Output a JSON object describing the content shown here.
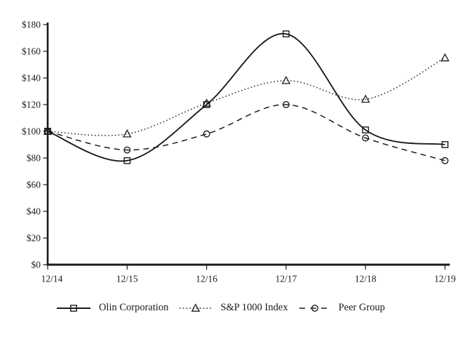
{
  "chart_data": {
    "type": "line",
    "title": "",
    "x_axis": {
      "categories": [
        "12/14",
        "12/15",
        "12/16",
        "12/17",
        "12/18",
        "12/19"
      ]
    },
    "y_axis": {
      "min": 0,
      "max": 180,
      "tick_step": 20,
      "tick_labels": [
        "$0",
        "$20",
        "$40",
        "$60",
        "$80",
        "$100",
        "$120",
        "$140",
        "$160",
        "$180"
      ]
    },
    "series": [
      {
        "name": "Olin Corporation",
        "line_style": "solid",
        "marker": "square",
        "values": [
          100,
          78,
          120,
          173,
          101,
          90
        ]
      },
      {
        "name": "S&P 1000 Index",
        "line_style": "dotted",
        "marker": "triangle",
        "values": [
          100,
          98,
          121,
          138,
          124,
          155
        ]
      },
      {
        "name": "Peer Group",
        "line_style": "dashed",
        "marker": "circle",
        "values": [
          100,
          86,
          98,
          120,
          95,
          78
        ]
      }
    ],
    "colors": {
      "line": "#1a1a1a",
      "background": "#ffffff"
    },
    "grid": false,
    "legend_position": "bottom"
  }
}
